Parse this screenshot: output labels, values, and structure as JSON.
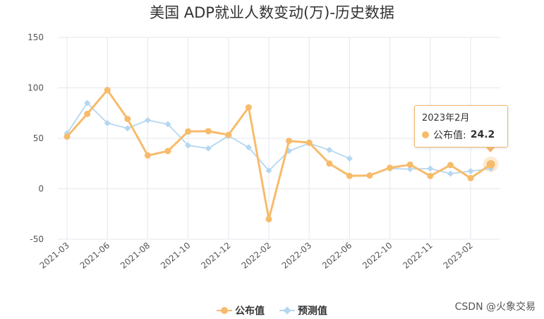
{
  "chart_data": {
    "type": "line",
    "title": "美国 ADP就业人数变动(万)-历史数据",
    "y_ticks": [
      150,
      100,
      50,
      0,
      -50
    ],
    "ylim": [
      -50,
      150
    ],
    "x_tick_labels": [
      "2021-03",
      "2021-06",
      "2021-08",
      "2021-10",
      "2021-12",
      "2022-02",
      "2022-03",
      "2022-06",
      "2022-10",
      "2022-11",
      "2023-02"
    ],
    "grid": true,
    "legend_position": "bottom-center",
    "series": [
      {
        "name": "公布值",
        "color": "#f7bb6b",
        "marker": "circle",
        "values": [
          51.7,
          74.2,
          97.8,
          69.2,
          33.0,
          37.4,
          56.8,
          57.1,
          53.4,
          80.7,
          -30.1,
          47.5,
          45.7,
          25.0,
          12.8,
          13.2,
          20.8,
          23.9,
          12.7,
          23.5,
          10.6,
          24.2
        ]
      },
      {
        "name": "预测值",
        "color": "#b5d7f0",
        "marker": "diamond",
        "values": [
          55.0,
          85.0,
          65.0,
          60.0,
          68.0,
          64.0,
          43.0,
          40.0,
          52.5,
          41.0,
          18.0,
          37.5,
          45.0,
          38.5,
          30.0,
          null,
          20.0,
          19.5,
          20.0,
          15.0,
          17.5,
          20.0
        ]
      }
    ]
  },
  "tooltip": {
    "date": "2023年2月",
    "series_label": "公布值:",
    "value": "24.2",
    "point_index": 21
  },
  "watermark": "CSDN @火象交易"
}
